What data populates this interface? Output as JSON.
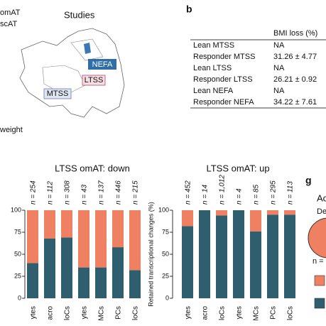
{
  "map": {
    "legend": [
      "omAT",
      "scAT"
    ],
    "title": "Studies",
    "labels": [
      "NEFA",
      "LTSS",
      "MTSS"
    ],
    "footnote": "weight"
  },
  "panel_labels": [
    "b",
    "g"
  ],
  "table": {
    "header": "BMI loss (%)",
    "rows": [
      [
        "Lean MTSS",
        "NA"
      ],
      [
        "Responder MTSS",
        "31.26 ± 4.77"
      ],
      [
        "Lean LTSS",
        "NA"
      ],
      [
        "Responder LTSS",
        "26.21 ± 0.92"
      ],
      [
        "Lean NEFA",
        "NA"
      ],
      [
        "Responder NEFA",
        "34.22 ± 7.61"
      ]
    ]
  },
  "panel_g": {
    "title": "Ac",
    "subtitle": "De",
    "note": "n ="
  },
  "chart_data": [
    {
      "type": "stacked_bar",
      "title": "LTSS omAT: down",
      "categories": [
        "ytes",
        "acro",
        "loCs",
        "ytes",
        "MCs",
        "PCs",
        "loCs"
      ],
      "n_labels": [
        "n = 254",
        "n = 112",
        "n = 308",
        "n = 43",
        "n = 137",
        "n = 446",
        "n = 215"
      ],
      "series": [
        {
          "color": "#2f5f6e",
          "values": [
            40,
            68,
            69,
            35,
            35,
            58,
            32
          ]
        },
        {
          "color": "#f08062",
          "values": [
            60,
            32,
            31,
            65,
            65,
            42,
            68
          ]
        }
      ],
      "ylim": [
        0,
        100
      ],
      "yticks": [
        0,
        25,
        50,
        75,
        100
      ]
    },
    {
      "type": "stacked_bar",
      "title": "LTSS omAT: up",
      "ylabel": "Retained transcriptional changes (%)",
      "categories": [
        "ytes",
        "acro",
        "loCs",
        "ytes",
        "MCs",
        "PCs",
        "loCs"
      ],
      "n_labels": [
        "n = 452",
        "n = 14",
        "n = 1,012",
        "n = 4",
        "n = 85",
        "n = 295",
        "n = 113"
      ],
      "series": [
        {
          "color": "#2f5f6e",
          "values": [
            82,
            100,
            94,
            100,
            76,
            95,
            95
          ]
        },
        {
          "color": "#f08062",
          "values": [
            18,
            0,
            6,
            0,
            24,
            5,
            5
          ]
        }
      ],
      "ylim": [
        0,
        100
      ],
      "yticks": [
        0,
        25,
        50,
        75,
        100
      ]
    }
  ]
}
